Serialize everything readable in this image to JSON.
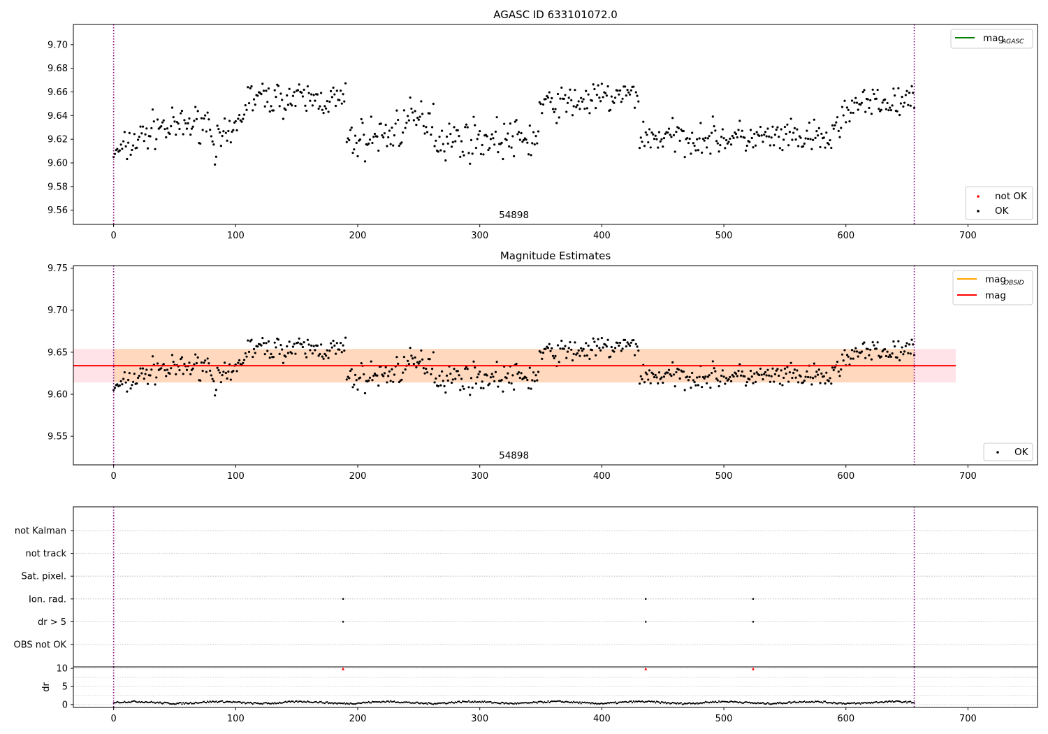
{
  "chart_data": [
    {
      "type": "scatter",
      "title": "AGASC ID 633101072.0",
      "xlim": [
        -33,
        757
      ],
      "ylim": [
        9.548,
        9.717
      ],
      "xticks": [
        0,
        100,
        200,
        300,
        400,
        500,
        600,
        700
      ],
      "yticks": [
        9.56,
        9.58,
        9.6,
        9.62,
        9.64,
        9.66,
        9.68,
        9.7
      ],
      "ytick_decimals": 2,
      "vlines": [
        0,
        656
      ],
      "annotation": {
        "text": "54898",
        "x": 328
      },
      "legend_upper": [
        {
          "label": "mag",
          "sub": "AGASC",
          "color": "#008000"
        }
      ],
      "legend_lower": [
        {
          "label": "not OK",
          "color": "#ff0000"
        },
        {
          "label": "OK",
          "color": "#000000"
        }
      ],
      "series": [
        {
          "name": "OK",
          "color": "#000000",
          "x_range": [
            0,
            656
          ],
          "step": 1,
          "segments": [
            {
              "x": [
                0,
                8
              ],
              "y0": 9.607,
              "y1": 9.613,
              "amp": 0.006
            },
            {
              "x": [
                8,
                40
              ],
              "y0": 9.612,
              "y1": 9.633,
              "amp": 0.013
            },
            {
              "x": [
                40,
                80
              ],
              "y0": 9.628,
              "y1": 9.636,
              "amp": 0.012
            },
            {
              "x": [
                80,
                98
              ],
              "y0": 9.615,
              "y1": 9.622,
              "amp": 0.013
            },
            {
              "x": [
                98,
                108
              ],
              "y0": 9.628,
              "y1": 9.645,
              "amp": 0.01
            },
            {
              "x": [
                108,
                190
              ],
              "y0": 9.655,
              "y1": 9.653,
              "amp": 0.012
            },
            {
              "x": [
                190,
                230
              ],
              "y0": 9.618,
              "y1": 9.625,
              "amp": 0.015
            },
            {
              "x": [
                230,
                262
              ],
              "y0": 9.63,
              "y1": 9.64,
              "amp": 0.016
            },
            {
              "x": [
                262,
                348
              ],
              "y0": 9.62,
              "y1": 9.62,
              "amp": 0.014
            },
            {
              "x": [
                348,
                430
              ],
              "y0": 9.648,
              "y1": 9.658,
              "amp": 0.012
            },
            {
              "x": [
                430,
                590
              ],
              "y0": 9.622,
              "y1": 9.62,
              "amp": 0.012
            },
            {
              "x": [
                590,
                600
              ],
              "y0": 9.63,
              "y1": 9.64,
              "amp": 0.013
            },
            {
              "x": [
                600,
                656
              ],
              "y0": 9.648,
              "y1": 9.652,
              "amp": 0.012
            }
          ]
        },
        {
          "name": "not OK",
          "color": "#ff0000",
          "x": [],
          "y": []
        }
      ],
      "mag_agasc": null
    },
    {
      "type": "scatter",
      "title": "Magnitude Estimates",
      "xlim": [
        -33,
        757
      ],
      "ylim": [
        9.516,
        9.753
      ],
      "xticks": [
        0,
        100,
        200,
        300,
        400,
        500,
        600,
        700
      ],
      "yticks": [
        9.55,
        9.6,
        9.65,
        9.7,
        9.75
      ],
      "ytick_decimals": 2,
      "vlines": [
        0,
        656
      ],
      "annotation": {
        "text": "54898",
        "x": 328
      },
      "legend_upper": [
        {
          "label": "mag",
          "sub": "OBSID",
          "color": "#ffa500"
        },
        {
          "label": "mag",
          "sub": "",
          "color": "#ff0000"
        }
      ],
      "legend_lower": [
        {
          "label": "OK",
          "color": "#000000"
        }
      ],
      "mag": 9.634,
      "mag_band": {
        "low": 9.614,
        "high": 9.654,
        "x": [
          -33,
          690
        ]
      },
      "mag_obsid_band": {
        "low": 9.614,
        "high": 9.654,
        "x": [
          0,
          656
        ]
      }
    },
    {
      "type": "scatter",
      "title": "",
      "xlim": [
        -33,
        757
      ],
      "xticks": [
        0,
        100,
        200,
        300,
        400,
        500,
        600,
        700
      ],
      "flag_rows": [
        "not Kalman",
        "not track",
        "Sat. pixel.",
        "Ion. rad.",
        "dr > 5",
        "OBS not OK"
      ],
      "flag_points": [
        {
          "row": "Ion. rad.",
          "x": [
            188,
            436,
            524
          ]
        },
        {
          "row": "dr > 5",
          "x": [
            188,
            436,
            524
          ]
        }
      ],
      "vlines": [
        0,
        656
      ]
    },
    {
      "type": "scatter",
      "ylabel": "dr",
      "xlim": [
        -33,
        757
      ],
      "ylim": [
        -0.8,
        10.4
      ],
      "xticks": [
        0,
        100,
        200,
        300,
        400,
        500,
        600,
        700
      ],
      "yticks": [
        0,
        5,
        10
      ],
      "vlines": [
        0,
        656
      ],
      "dr_baseline": 0.55,
      "dr_amp": 0.45,
      "dr_clipped": {
        "x": [
          188,
          436,
          524
        ],
        "y": 10,
        "color": "#ff0000"
      }
    }
  ]
}
